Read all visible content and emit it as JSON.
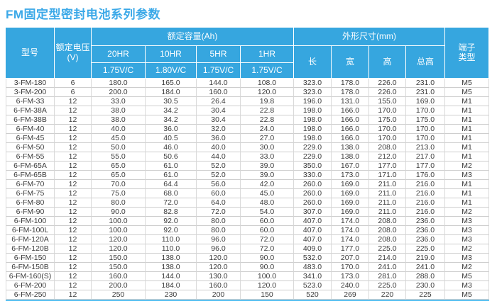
{
  "page": {
    "title": "FM固定型密封电池系列参数"
  },
  "colors": {
    "header_bg": "#36A6DF",
    "title_text": "#3CA9E8",
    "table_bottom_border": "#5FC3F1"
  },
  "table": {
    "header": {
      "model": "型号",
      "voltage_lines": [
        "额定电压",
        "(V)"
      ],
      "capacity_group": "额定容量(Ah)",
      "dimensions_group": "外形尺寸(mm)",
      "terminal_lines": [
        "端子",
        "类型"
      ],
      "hr_columns": [
        "20HR",
        "10HR",
        "5HR",
        "1HR"
      ],
      "vc_columns": [
        "1.75V/C",
        "1.80V/C",
        "1.75V/C",
        "1.75V/C"
      ],
      "dim_columns": [
        "长",
        "宽",
        "高",
        "总高"
      ]
    },
    "rows": [
      [
        "3-FM-180",
        "6",
        "180.0",
        "165.0",
        "144.0",
        "108.0",
        "323.0",
        "178.0",
        "226.0",
        "231.0",
        "M5"
      ],
      [
        "3-FM-200",
        "6",
        "200.0",
        "184.0",
        "160.0",
        "120.0",
        "323.0",
        "178.0",
        "226.0",
        "231.0",
        "M5"
      ],
      [
        "6-FM-33",
        "12",
        "33.0",
        "30.5",
        "26.4",
        "19.8",
        "196.0",
        "131.0",
        "155.0",
        "169.0",
        "M1"
      ],
      [
        "6-FM-38A",
        "12",
        "38.0",
        "34.2",
        "30.4",
        "22.8",
        "198.0",
        "166.0",
        "170.0",
        "170.0",
        "M1"
      ],
      [
        "6-FM-38B",
        "12",
        "38.0",
        "34.2",
        "30.4",
        "22.8",
        "198.0",
        "166.0",
        "175.0",
        "175.0",
        "M1"
      ],
      [
        "6-FM-40",
        "12",
        "40.0",
        "36.0",
        "32.0",
        "24.0",
        "198.0",
        "166.0",
        "170.0",
        "170.0",
        "M1"
      ],
      [
        "6-FM-45",
        "12",
        "45.0",
        "40.5",
        "36.0",
        "27.0",
        "198.0",
        "166.0",
        "170.0",
        "170.0",
        "M1"
      ],
      [
        "6-FM-50",
        "12",
        "50.0",
        "46.0",
        "40.0",
        "30.0",
        "229.0",
        "138.0",
        "208.0",
        "213.0",
        "M1"
      ],
      [
        "6-FM-55",
        "12",
        "55.0",
        "50.6",
        "44.0",
        "33.0",
        "229.0",
        "138.0",
        "212.0",
        "217.0",
        "M1"
      ],
      [
        "6-FM-65A",
        "12",
        "65.0",
        "61.0",
        "52.0",
        "39.0",
        "350.0",
        "167.0",
        "177.0",
        "177.0",
        "M2"
      ],
      [
        "6-FM-65B",
        "12",
        "65.0",
        "61.0",
        "52.0",
        "39.0",
        "330.0",
        "173.0",
        "171.0",
        "176.0",
        "M3"
      ],
      [
        "6-FM-70",
        "12",
        "70.0",
        "64.4",
        "56.0",
        "42.0",
        "260.0",
        "169.0",
        "211.0",
        "216.0",
        "M1"
      ],
      [
        "6-FM-75",
        "12",
        "75.0",
        "68.0",
        "60.0",
        "45.0",
        "260.0",
        "169.0",
        "211.0",
        "216.0",
        "M1"
      ],
      [
        "6-FM-80",
        "12",
        "80.0",
        "72.0",
        "64.0",
        "48.0",
        "260.0",
        "169.0",
        "211.0",
        "216.0",
        "M1"
      ],
      [
        "6-FM-90",
        "12",
        "90.0",
        "82.8",
        "72.0",
        "54.0",
        "307.0",
        "169.0",
        "211.0",
        "216.0",
        "M2"
      ],
      [
        "6-FM-100",
        "12",
        "100.0",
        "92.0",
        "80.0",
        "60.0",
        "407.0",
        "174.0",
        "208.0",
        "236.0",
        "M3"
      ],
      [
        "6-FM-100L",
        "12",
        "100.0",
        "92.0",
        "80.0",
        "60.0",
        "407.0",
        "174.0",
        "208.0",
        "236.0",
        "M3"
      ],
      [
        "6-FM-120A",
        "12",
        "120.0",
        "110.0",
        "96.0",
        "72.0",
        "407.0",
        "174.0",
        "208.0",
        "236.0",
        "M3"
      ],
      [
        "6-FM-120B",
        "12",
        "120.0",
        "110.0",
        "96.0",
        "72.0",
        "409.0",
        "177.0",
        "225.0",
        "225.0",
        "M2"
      ],
      [
        "6-FM-150",
        "12",
        "150.0",
        "138.0",
        "120.0",
        "90.0",
        "532.0",
        "207.0",
        "214.0",
        "219.0",
        "M3"
      ],
      [
        "6-FM-150B",
        "12",
        "150.0",
        "138.0",
        "120.0",
        "90.0",
        "483.0",
        "170.0",
        "241.0",
        "241.0",
        "M2"
      ],
      [
        "6-FM-160(S)",
        "12",
        "160.0",
        "144.0",
        "130.0",
        "100.0",
        "341.0",
        "173.0",
        "281.0",
        "288.0",
        "M5"
      ],
      [
        "6-FM-200",
        "12",
        "200.0",
        "184.0",
        "160.0",
        "120.0",
        "523.0",
        "240.0",
        "225.0",
        "230.0",
        "M3"
      ],
      [
        "6-FM-250",
        "12",
        "250",
        "230",
        "200",
        "150",
        "520",
        "269",
        "220",
        "225",
        "M5"
      ]
    ]
  }
}
